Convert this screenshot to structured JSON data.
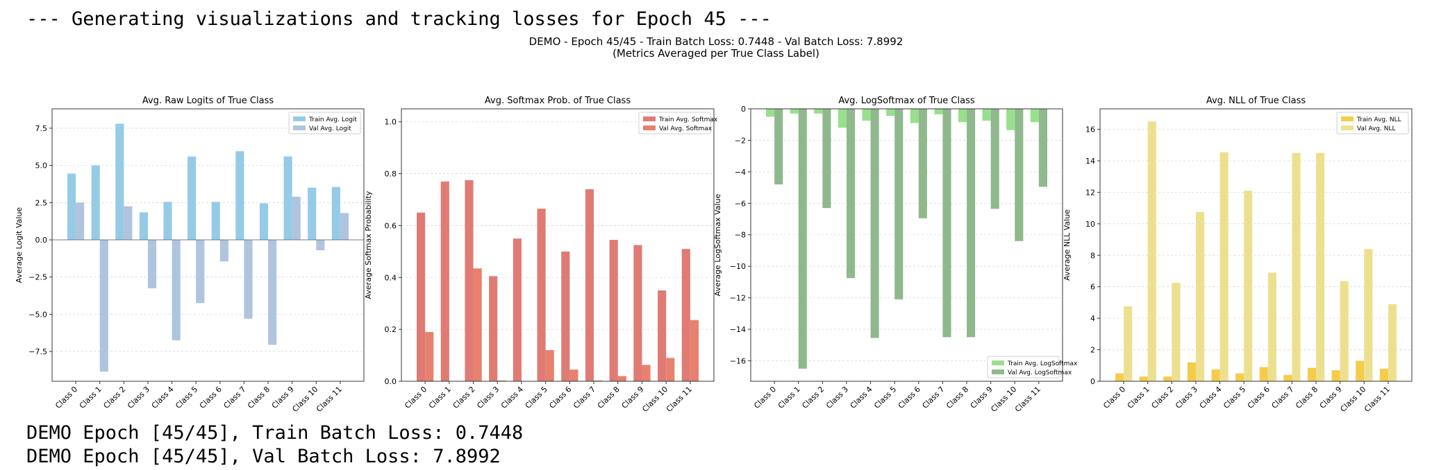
{
  "console": {
    "header": "--- Generating visualizations and tracking losses for Epoch 45 ---",
    "log_lines": [
      "DEMO Epoch [45/45], Train Batch Loss: 0.7448",
      "DEMO Epoch [45/45], Val Batch Loss: 7.8992"
    ]
  },
  "figure": {
    "suptitle_line1": "DEMO - Epoch 45/45 - Train Batch Loss: 0.7448 - Val Batch Loss: 7.8992",
    "suptitle_line2": "(Metrics Averaged per True Class Label)"
  },
  "chart_data": [
    {
      "type": "bar",
      "title": "Avg. Raw Logits of True Class",
      "xlabel": "",
      "ylabel": "Average Logit Value",
      "categories": [
        "Class 0",
        "Class 1",
        "Class 2",
        "Class 3",
        "Class 4",
        "Class 5",
        "Class 6",
        "Class 7",
        "Class 8",
        "Class 9",
        "Class 10",
        "Class 11"
      ],
      "series": [
        {
          "name": "Train Avg. Logit",
          "color": "#95cbe6",
          "values": [
            4.45,
            5.0,
            7.8,
            1.85,
            2.55,
            5.6,
            2.55,
            5.95,
            2.45,
            5.6,
            3.5,
            3.55
          ]
        },
        {
          "name": "Val Avg. Logit",
          "color": "#b0c4de",
          "values": [
            2.5,
            -8.85,
            2.25,
            -3.25,
            -6.75,
            -4.25,
            -1.45,
            -5.3,
            -7.05,
            2.9,
            -0.7,
            1.8
          ]
        }
      ],
      "ylim": [
        -9.5,
        8.8
      ],
      "yticks": [
        -7.5,
        -5.0,
        -2.5,
        0.0,
        2.5,
        5.0,
        7.5
      ],
      "ytick_labels": [
        "−7.5",
        "−5.0",
        "−2.5",
        "0.0",
        "2.5",
        "5.0",
        "7.5"
      ],
      "zero_line": true,
      "grid": "y-dashed",
      "legend_position": "top-right"
    },
    {
      "type": "bar",
      "title": "Avg. Softmax Prob. of True Class",
      "xlabel": "",
      "ylabel": "Average Softmax Probability",
      "categories": [
        "Class 0",
        "Class 1",
        "Class 2",
        "Class 3",
        "Class 4",
        "Class 5",
        "Class 6",
        "Class 7",
        "Class 8",
        "Class 9",
        "Class 10",
        "Class 11"
      ],
      "series": [
        {
          "name": "Train Avg. Softmax",
          "color": "#e07b74",
          "values": [
            0.65,
            0.77,
            0.775,
            0.405,
            0.55,
            0.665,
            0.5,
            0.74,
            0.545,
            0.525,
            0.35,
            0.51
          ]
        },
        {
          "name": "Val Avg. Softmax",
          "color": "#e8806e",
          "values": [
            0.19,
            0.0,
            0.435,
            0.003,
            0.001,
            0.12,
            0.045,
            0.003,
            0.02,
            0.063,
            0.09,
            0.236
          ]
        }
      ],
      "ylim": [
        0,
        1.05
      ],
      "yticks": [
        0.0,
        0.2,
        0.4,
        0.6,
        0.8,
        1.0
      ],
      "ytick_labels": [
        "0.0",
        "0.2",
        "0.4",
        "0.6",
        "0.8",
        "1.0"
      ],
      "zero_line": false,
      "grid": "y-dashed",
      "legend_position": "top-right"
    },
    {
      "type": "bar",
      "title": "Avg. LogSoftmax of True Class",
      "xlabel": "",
      "ylabel": "Average LogSoftmax Value",
      "categories": [
        "Class 0",
        "Class 1",
        "Class 2",
        "Class 3",
        "Class 4",
        "Class 5",
        "Class 6",
        "Class 7",
        "Class 8",
        "Class 9",
        "Class 10",
        "Class 11"
      ],
      "series": [
        {
          "name": "Train Avg. LogSoftmax",
          "color": "#98e08d",
          "values": [
            -0.5,
            -0.3,
            -0.3,
            -1.2,
            -0.75,
            -0.45,
            -0.9,
            -0.35,
            -0.85,
            -0.75,
            -1.35,
            -0.85
          ]
        },
        {
          "name": "Val Avg. LogSoftmax",
          "color": "#8fb98d",
          "values": [
            -4.8,
            -16.5,
            -6.3,
            -10.75,
            -14.55,
            -12.1,
            -6.95,
            -14.5,
            -14.5,
            -6.35,
            -8.4,
            -4.95
          ]
        }
      ],
      "ylim": [
        -17.3,
        0
      ],
      "yticks": [
        -16,
        -14,
        -12,
        -10,
        -8,
        -6,
        -4,
        -2,
        0
      ],
      "ytick_labels": [
        "−16",
        "−14",
        "−12",
        "−10",
        "−8",
        "−6",
        "−4",
        "−2",
        "0"
      ],
      "zero_line": false,
      "grid": "y-dashed",
      "legend_position": "bottom-right"
    },
    {
      "type": "bar",
      "title": "Avg. NLL of True Class",
      "xlabel": "",
      "ylabel": "Average NLL Value",
      "categories": [
        "Class 0",
        "Class 1",
        "Class 2",
        "Class 3",
        "Class 4",
        "Class 5",
        "Class 6",
        "Class 7",
        "Class 8",
        "Class 9",
        "Class 10",
        "Class 11"
      ],
      "series": [
        {
          "name": "Train Avg. NLL",
          "color": "#f5cc4a",
          "values": [
            0.5,
            0.3,
            0.3,
            1.2,
            0.75,
            0.5,
            0.9,
            0.4,
            0.85,
            0.7,
            1.3,
            0.8
          ]
        },
        {
          "name": "Val Avg. NLL",
          "color": "#ece08f",
          "values": [
            4.75,
            16.5,
            6.25,
            10.75,
            14.55,
            12.1,
            6.9,
            14.5,
            14.5,
            6.35,
            8.4,
            4.9
          ]
        }
      ],
      "ylim": [
        0,
        17.3
      ],
      "yticks": [
        0,
        2,
        4,
        6,
        8,
        10,
        12,
        14,
        16
      ],
      "ytick_labels": [
        "0",
        "2",
        "4",
        "6",
        "8",
        "10",
        "12",
        "14",
        "16"
      ],
      "zero_line": false,
      "grid": "y-dashed",
      "legend_position": "top-right"
    }
  ]
}
